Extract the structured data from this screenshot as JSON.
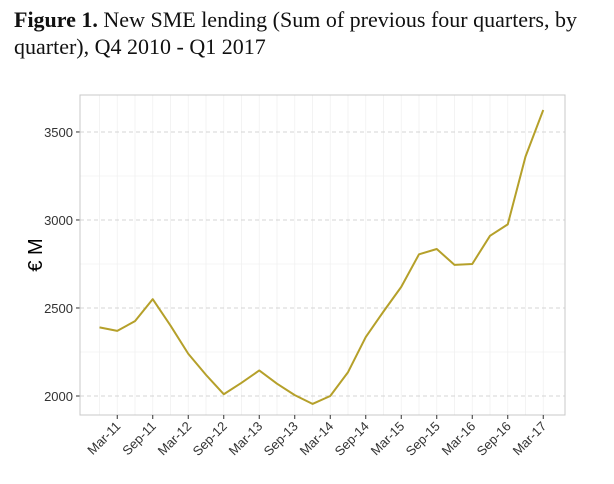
{
  "figure_label": "Figure 1.",
  "figure_title": "New SME lending (Sum of previous four quarters, by quarter), Q4 2010 - Q1 2017",
  "chart_data": {
    "type": "line",
    "title": "New SME lending (Sum of previous four quarters, by quarter), Q4 2010 - Q1 2017",
    "xlabel": "",
    "ylabel": "€ M",
    "ylim": [
      1892,
      3710
    ],
    "yticks": [
      2000,
      2500,
      3000,
      3500
    ],
    "x": [
      "Dec-10",
      "Mar-11",
      "Jun-11",
      "Sep-11",
      "Dec-11",
      "Mar-12",
      "Jun-12",
      "Sep-12",
      "Dec-12",
      "Mar-13",
      "Jun-13",
      "Sep-13",
      "Dec-13",
      "Mar-14",
      "Jun-14",
      "Sep-14",
      "Dec-14",
      "Mar-15",
      "Jun-15",
      "Sep-15",
      "Dec-15",
      "Mar-16",
      "Jun-16",
      "Sep-16",
      "Dec-16",
      "Mar-17"
    ],
    "xtick_labels": [
      "Mar-11",
      "Sep-11",
      "Mar-12",
      "Sep-12",
      "Mar-13",
      "Sep-13",
      "Mar-14",
      "Sep-14",
      "Mar-15",
      "Sep-15",
      "Mar-16",
      "Sep-16",
      "Mar-17"
    ],
    "series": [
      {
        "name": "New SME lending",
        "color": "#b5a02a",
        "values": [
          2390,
          2370,
          2425,
          2550,
          2400,
          2240,
          2120,
          2010,
          2075,
          2145,
          2070,
          2005,
          1955,
          2000,
          2135,
          2335,
          2480,
          2620,
          2805,
          2835,
          2745,
          2750,
          2910,
          2975,
          3360,
          3625
        ]
      }
    ],
    "grid": true,
    "legend": "none"
  }
}
